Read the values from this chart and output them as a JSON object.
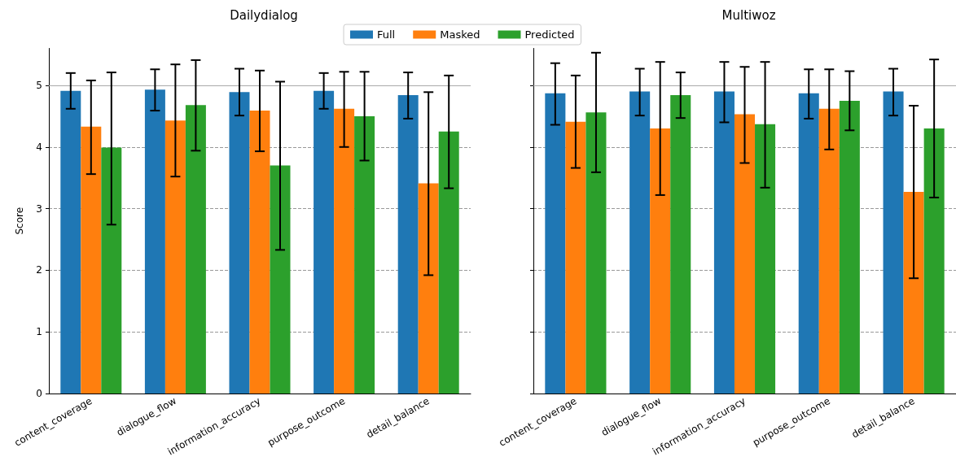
{
  "chart_data": [
    {
      "type": "bar",
      "title": "Dailydialog",
      "ylabel": "Score",
      "categories": [
        "content_coverage",
        "dialogue_flow",
        "information_accuracy",
        "purpose_outcome",
        "detail_balance"
      ],
      "series": [
        {
          "name": "Full",
          "color": "#1f77b4",
          "values": [
            4.91,
            4.93,
            4.89,
            4.91,
            4.84
          ],
          "errors": [
            [
              4.62,
              5.2
            ],
            [
              4.59,
              5.26
            ],
            [
              4.51,
              5.27
            ],
            [
              4.62,
              5.2
            ],
            [
              4.46,
              5.21
            ]
          ]
        },
        {
          "name": "Masked",
          "color": "#ff7f0e",
          "values": [
            4.33,
            4.43,
            4.59,
            4.62,
            3.41
          ],
          "errors": [
            [
              3.56,
              5.08
            ],
            [
              3.52,
              5.34
            ],
            [
              3.93,
              5.24
            ],
            [
              4.0,
              5.22
            ],
            [
              1.92,
              4.89
            ]
          ]
        },
        {
          "name": "Predicted",
          "color": "#2ca02c",
          "values": [
            3.99,
            4.68,
            3.7,
            4.5,
            4.25
          ],
          "errors": [
            [
              2.74,
              5.21
            ],
            [
              3.94,
              5.41
            ],
            [
              2.33,
              5.06
            ],
            [
              3.78,
              5.22
            ],
            [
              3.33,
              5.16
            ]
          ]
        }
      ],
      "ylim": [
        0,
        5.6
      ],
      "yticks": [
        0,
        1,
        2,
        3,
        4,
        5
      ],
      "grid": "y",
      "line_style": "dashed",
      "legend": "top",
      "ref_lines": [
        {
          "axis": "y",
          "value": 5,
          "color": "#aaaaaa"
        }
      ]
    },
    {
      "type": "bar",
      "title": "Multiwoz",
      "categories": [
        "content_coverage",
        "dialogue_flow",
        "information_accuracy",
        "purpose_outcome",
        "detail_balance"
      ],
      "series": [
        {
          "color": "#1f77b4",
          "values": [
            4.87,
            4.9,
            4.9,
            4.87,
            4.9
          ],
          "errors": [
            [
              4.36,
              5.36
            ],
            [
              4.51,
              5.27
            ],
            [
              4.4,
              5.38
            ],
            [
              4.46,
              5.26
            ],
            [
              4.51,
              5.27
            ]
          ]
        },
        {
          "color": "#ff7f0e",
          "values": [
            4.41,
            4.3,
            4.53,
            4.62,
            3.27
          ],
          "errors": [
            [
              3.66,
              5.16
            ],
            [
              3.22,
              5.38
            ],
            [
              3.74,
              5.3
            ],
            [
              3.96,
              5.26
            ],
            [
              1.87,
              4.67
            ]
          ]
        },
        {
          "color": "#2ca02c",
          "values": [
            4.56,
            4.84,
            4.37,
            4.75,
            4.3
          ],
          "errors": [
            [
              3.59,
              5.53
            ],
            [
              4.47,
              5.21
            ],
            [
              3.34,
              5.38
            ],
            [
              4.27,
              5.23
            ],
            [
              3.18,
              5.42
            ]
          ]
        }
      ],
      "ylim": [
        0,
        5.6
      ],
      "yticks": [
        0,
        1,
        2,
        3,
        4,
        5
      ],
      "grid": "y",
      "line_style": "dashed",
      "tick_labels": "x",
      "ref_lines": [
        {
          "axis": "y",
          "value": 5,
          "color": "#aaaaaa"
        }
      ]
    }
  ]
}
